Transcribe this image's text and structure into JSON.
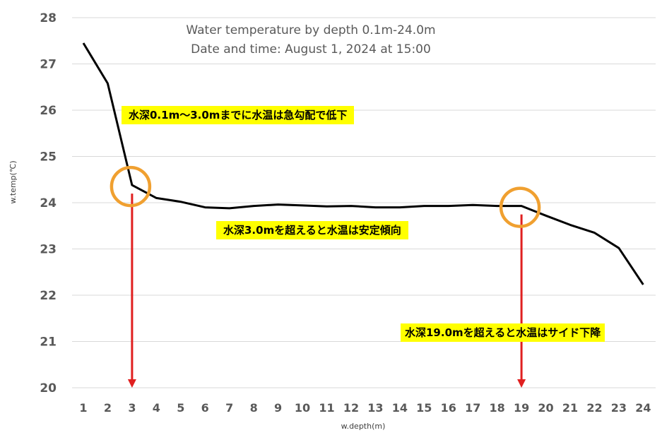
{
  "chart_data": {
    "type": "line",
    "title": "Water temperature by depth 0.1m-24.0m",
    "subtitle": "Date and time: August 1, 2024 at 15:00",
    "xlabel": "w.depth(m)",
    "ylabel": "w.temp(℃)",
    "categories": [
      "1",
      "2",
      "3",
      "4",
      "5",
      "6",
      "7",
      "8",
      "9",
      "10",
      "11",
      "12",
      "13",
      "14",
      "15",
      "16",
      "17",
      "18",
      "19",
      "20",
      "21",
      "22",
      "23",
      "24"
    ],
    "values": [
      27.45,
      26.58,
      24.38,
      24.1,
      24.02,
      23.9,
      23.88,
      23.93,
      23.96,
      23.94,
      23.92,
      23.93,
      23.9,
      23.9,
      23.93,
      23.93,
      23.95,
      23.93,
      23.93,
      23.72,
      23.52,
      23.35,
      23.02,
      22.23
    ],
    "ylim": [
      20,
      28
    ],
    "yticks": [
      "20",
      "21",
      "22",
      "23",
      "24",
      "25",
      "26",
      "27",
      "28"
    ],
    "grid": true,
    "line_color": "#000000",
    "circle_color": "#f0a030",
    "arrow_color": "#e02020",
    "annotations": [
      {
        "text": "水深0.1m～3.0mまでに水温は急勾配で低下"
      },
      {
        "text": "水深3.0mを超えると水温は安定傾向"
      },
      {
        "text": "水深19.0mを超えると水温はサイド下降"
      }
    ],
    "markers": [
      {
        "x": 3,
        "y": 24.38
      },
      {
        "x": 19,
        "y": 23.93
      }
    ]
  }
}
